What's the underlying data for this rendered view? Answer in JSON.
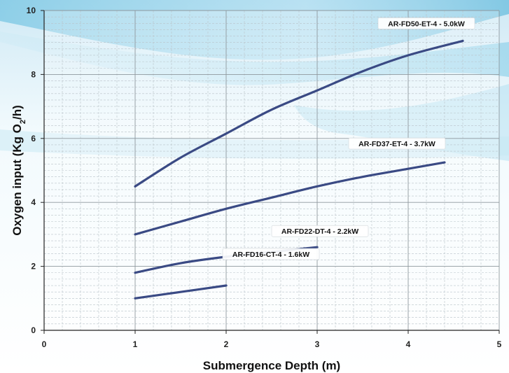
{
  "chart_data": {
    "type": "line",
    "title": "",
    "xlabel": "Submergence Depth (m)",
    "ylabel_parts": {
      "main": "Oxygen input (Kg O",
      "sub": "2",
      "tail": "/h)"
    },
    "xlim": [
      0,
      5
    ],
    "ylim": [
      0,
      10
    ],
    "xticks": [
      "0",
      "1",
      "2",
      "3",
      "4",
      "5"
    ],
    "yticks": [
      "0",
      "2",
      "4",
      "6",
      "8",
      "10"
    ],
    "grid": true,
    "minor_grid": true,
    "line_color": "#3a4a84",
    "series": [
      {
        "name": "AR-FD50-ET-4 - 5.0kW",
        "x": [
          1.0,
          1.5,
          2.0,
          2.5,
          3.0,
          3.5,
          4.0,
          4.6
        ],
        "values": [
          4.5,
          5.4,
          6.15,
          6.9,
          7.5,
          8.1,
          8.6,
          9.05
        ]
      },
      {
        "name": "AR-FD37-ET-4 - 3.7kW",
        "x": [
          1.0,
          1.5,
          2.0,
          2.5,
          3.0,
          3.5,
          4.0,
          4.4
        ],
        "values": [
          3.0,
          3.4,
          3.8,
          4.15,
          4.5,
          4.8,
          5.05,
          5.25
        ]
      },
      {
        "name": "AR-FD22-DT-4 - 2.2kW",
        "x": [
          1.0,
          1.5,
          2.0,
          2.5,
          3.0
        ],
        "values": [
          1.8,
          2.1,
          2.3,
          2.45,
          2.6
        ]
      },
      {
        "name": "AR-FD16-CT-4 - 1.6kW",
        "x": [
          1.0,
          1.5,
          2.0
        ],
        "values": [
          1.0,
          1.2,
          1.4
        ]
      }
    ]
  }
}
